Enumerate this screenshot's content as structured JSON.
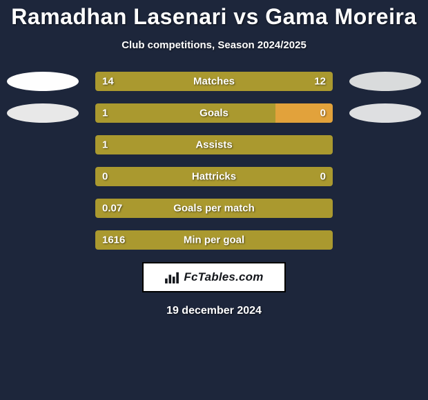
{
  "colors": {
    "background": "#1d263b",
    "bar_left": "#aa992f",
    "bar_left_alt": "#aa992f",
    "bar_right": "#aa992f",
    "bar_right_goals": "#e2a23b",
    "oval_left_1": "#fefefe",
    "oval_right_1": "#d9dbdc",
    "oval_left_2": "#e8e8e8",
    "oval_right_2": "#dedfe1",
    "text": "#ffffff",
    "badge_bg": "#ffffff",
    "badge_border": "#000000",
    "badge_text": "#14171c"
  },
  "fonts": {
    "title_size": 32,
    "subtitle_size": 15,
    "bar_label_size": 15,
    "date_size": 16
  },
  "header": {
    "title": "Ramadhan Lasenari vs Gama Moreira",
    "subtitle": "Club competitions, Season 2024/2025"
  },
  "rows": [
    {
      "label": "Matches",
      "left_value": "14",
      "right_value": "12",
      "left_pct": 74,
      "right_pct": 26,
      "left_color": "#aa992f",
      "right_color": "#aa992f",
      "show_right_value": true,
      "oval_left": "#fefefe",
      "oval_right": "#d9dbdc"
    },
    {
      "label": "Goals",
      "left_value": "1",
      "right_value": "0",
      "left_pct": 76,
      "right_pct": 24,
      "left_color": "#aa992f",
      "right_color": "#e2a23b",
      "show_right_value": true,
      "oval_left": "#e8e8e8",
      "oval_right": "#dedfe1"
    },
    {
      "label": "Assists",
      "left_value": "1",
      "right_value": "",
      "left_pct": 100,
      "right_pct": 0,
      "left_color": "#aa992f",
      "right_color": "#aa992f",
      "show_right_value": false,
      "oval_left": null,
      "oval_right": null
    },
    {
      "label": "Hattricks",
      "left_value": "0",
      "right_value": "0",
      "left_pct": 100,
      "right_pct": 0,
      "left_color": "#aa992f",
      "right_color": "#aa992f",
      "show_right_value": true,
      "oval_left": null,
      "oval_right": null
    },
    {
      "label": "Goals per match",
      "left_value": "0.07",
      "right_value": "",
      "left_pct": 100,
      "right_pct": 0,
      "left_color": "#aa992f",
      "right_color": "#aa992f",
      "show_right_value": false,
      "oval_left": null,
      "oval_right": null
    },
    {
      "label": "Min per goal",
      "left_value": "1616",
      "right_value": "",
      "left_pct": 100,
      "right_pct": 0,
      "left_color": "#aa992f",
      "right_color": "#aa992f",
      "show_right_value": false,
      "oval_left": null,
      "oval_right": null
    }
  ],
  "badge": {
    "text": "FcTables.com"
  },
  "date": "19 december 2024"
}
